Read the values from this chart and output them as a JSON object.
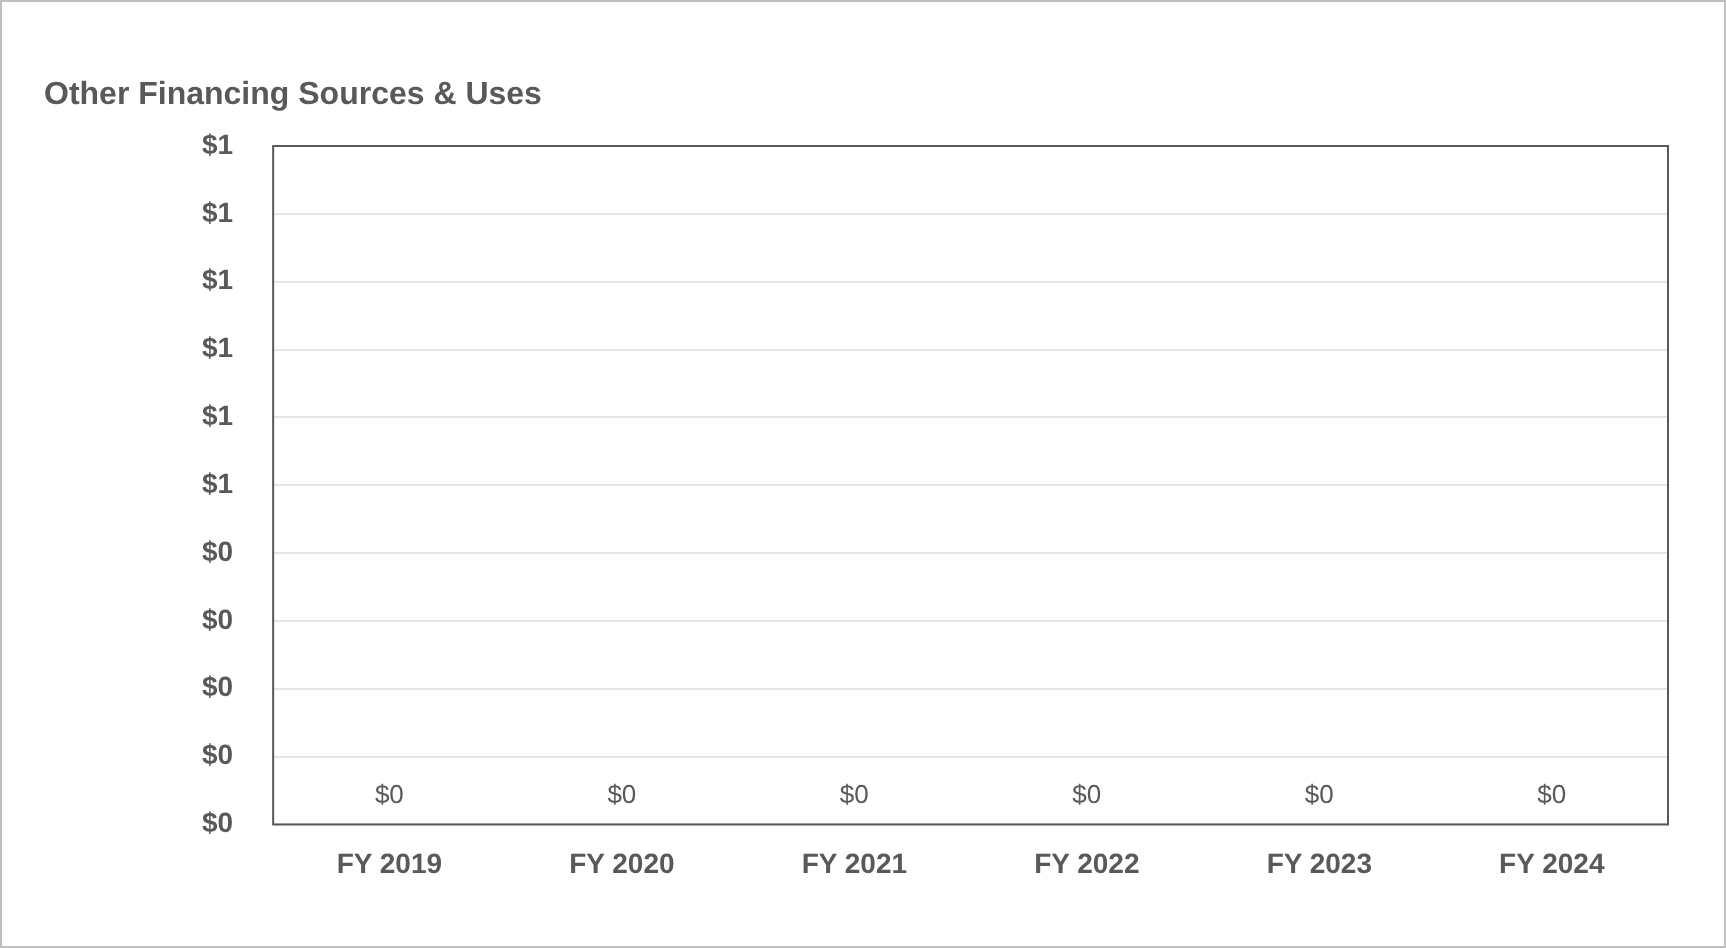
{
  "chart_data": {
    "type": "bar",
    "title": "Other Financing Sources & Uses",
    "categories": [
      "FY 2019",
      "FY 2020",
      "FY 2021",
      "FY 2022",
      "FY 2023",
      "FY 2024"
    ],
    "values": [
      0,
      0,
      0,
      0,
      0,
      0
    ],
    "value_labels": [
      "$0",
      "$0",
      "$0",
      "$0",
      "$0",
      "$0"
    ],
    "ylim": [
      0,
      1
    ],
    "yticks": [
      {
        "value": 0,
        "label": "$0"
      },
      {
        "value": 0.1,
        "label": "$0"
      },
      {
        "value": 0.2,
        "label": "$0"
      },
      {
        "value": 0.3,
        "label": "$0"
      },
      {
        "value": 0.4,
        "label": "$0"
      },
      {
        "value": 0.5,
        "label": "$1"
      },
      {
        "value": 0.6,
        "label": "$1"
      },
      {
        "value": 0.7,
        "label": "$1"
      },
      {
        "value": 0.8,
        "label": "$1"
      },
      {
        "value": 0.9,
        "label": "$1"
      },
      {
        "value": 1,
        "label": "$1"
      }
    ],
    "grid": "y"
  }
}
